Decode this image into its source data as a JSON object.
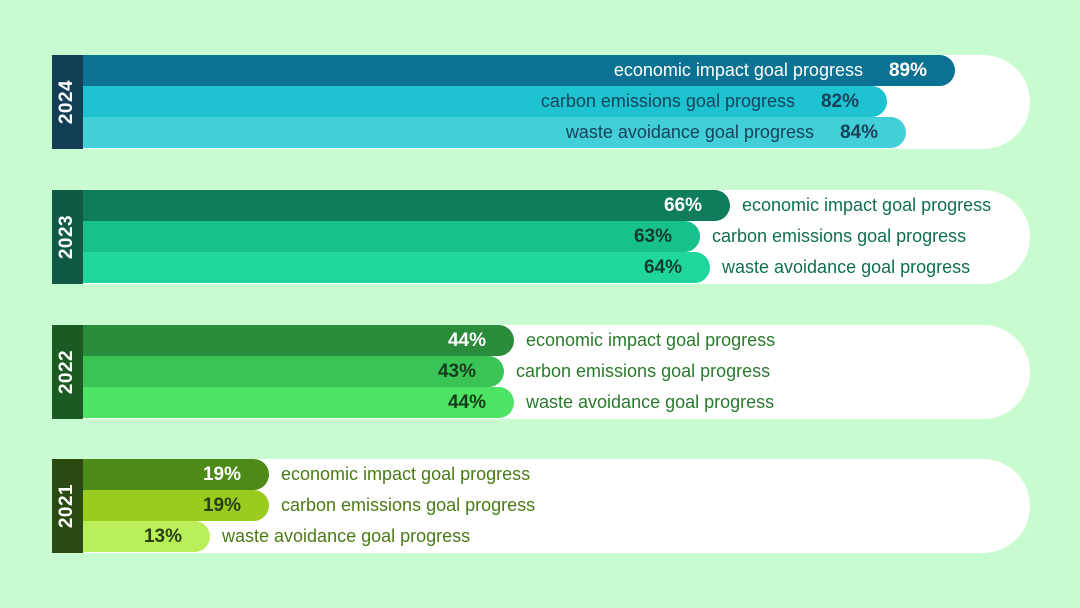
{
  "chart_data": {
    "type": "bar",
    "orientation": "horizontal",
    "series_labels": [
      "economic impact goal progress",
      "carbon emissions goal progress",
      "waste avoidance goal progress"
    ],
    "groups": [
      {
        "year": "2024",
        "strip_color": "#123f56",
        "label_placement": "inside",
        "text_color": "#17425a",
        "bars": [
          {
            "metric": "economic impact goal progress",
            "value": 89,
            "value_label": "89%",
            "color": "#0b7293",
            "text_color": "#ffffff"
          },
          {
            "metric": "carbon emissions goal progress",
            "value": 82,
            "value_label": "82%",
            "color": "#1dc3d1",
            "text_color": "#17425a"
          },
          {
            "metric": "waste avoidance goal progress",
            "value": 84,
            "value_label": "84%",
            "color": "#43cfd8",
            "text_color": "#17425a"
          }
        ]
      },
      {
        "year": "2023",
        "strip_color": "#105946",
        "label_placement": "outside",
        "text_color": "#0f6f50",
        "bars": [
          {
            "metric": "economic impact goal progress",
            "value": 66,
            "value_label": "66%",
            "color": "#0f7c5e",
            "text_color": "#ffffff"
          },
          {
            "metric": "carbon emissions goal progress",
            "value": 63,
            "value_label": "63%",
            "color": "#17c18e",
            "text_color": "#0f3b2c"
          },
          {
            "metric": "waste avoidance goal progress",
            "value": 64,
            "value_label": "64%",
            "color": "#1fd69e",
            "text_color": "#0f3b2c"
          }
        ]
      },
      {
        "year": "2022",
        "strip_color": "#1b5a22",
        "label_placement": "outside",
        "text_color": "#2a7a2e",
        "bars": [
          {
            "metric": "economic impact goal progress",
            "value": 44,
            "value_label": "44%",
            "color": "#2a8b3a",
            "text_color": "#ffffff"
          },
          {
            "metric": "carbon emissions goal progress",
            "value": 43,
            "value_label": "43%",
            "color": "#3ac455",
            "text_color": "#173b1c"
          },
          {
            "metric": "waste avoidance goal progress",
            "value": 44,
            "value_label": "44%",
            "color": "#4de364",
            "text_color": "#173b1c"
          }
        ]
      },
      {
        "year": "2021",
        "strip_color": "#2b4a12",
        "label_placement": "outside",
        "text_color": "#4a7a16",
        "bars": [
          {
            "metric": "economic impact goal progress",
            "value": 19,
            "value_label": "19%",
            "color": "#4e8a18",
            "text_color": "#ffffff"
          },
          {
            "metric": "carbon emissions goal progress",
            "value": 19,
            "value_label": "19%",
            "color": "#99cc1f",
            "text_color": "#2a3f10"
          },
          {
            "metric": "waste avoidance goal progress",
            "value": 13,
            "value_label": "13%",
            "color": "#b9f05a",
            "text_color": "#2a3f10"
          }
        ]
      }
    ],
    "xlim": [
      0,
      100
    ],
    "grid": false,
    "legend": "none",
    "background": "#c9fbd0"
  }
}
